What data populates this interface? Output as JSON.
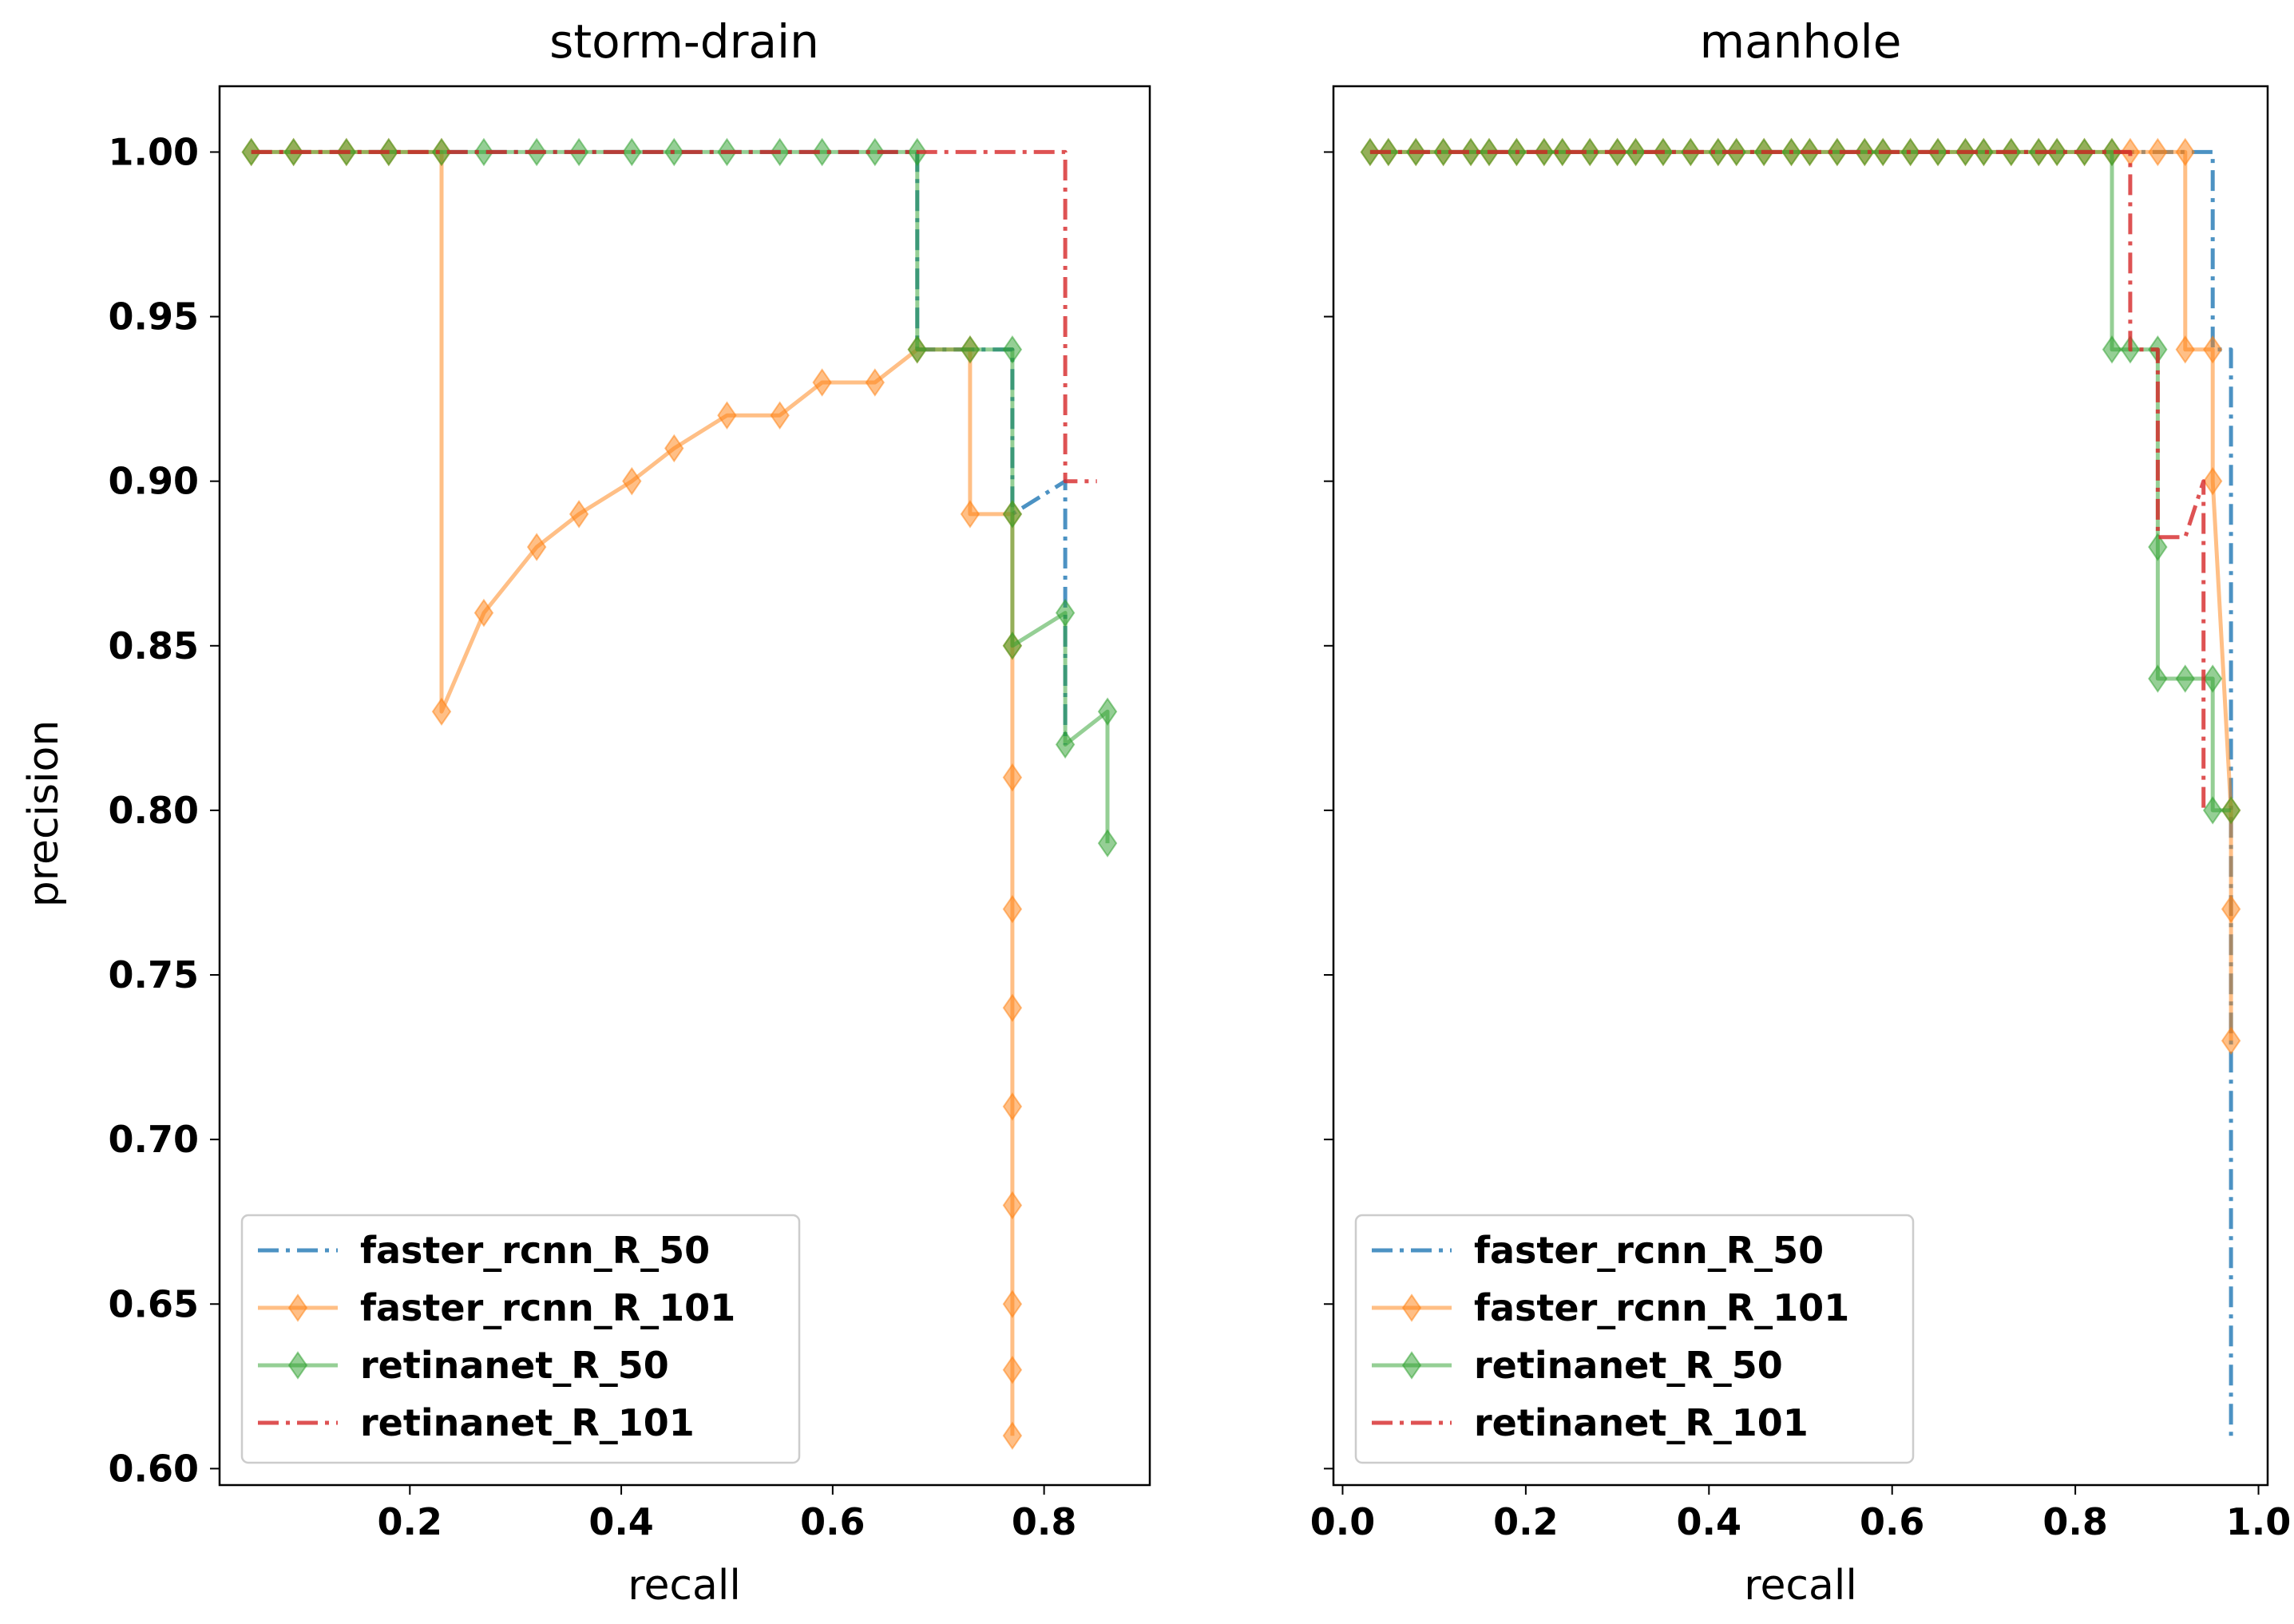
{
  "chart_data": [
    {
      "type": "line",
      "title": "storm-drain",
      "xlabel": "recall",
      "ylabel": "precision",
      "xlim": [
        0.02,
        0.9
      ],
      "ylim": [
        0.595,
        1.02
      ],
      "xticks": [
        0.2,
        0.4,
        0.6,
        0.8
      ],
      "xtick_labels": [
        "0.2",
        "0.4",
        "0.6",
        "0.8"
      ],
      "yticks": [
        0.6,
        0.65,
        0.7,
        0.75,
        0.8,
        0.85,
        0.9,
        0.95,
        1.0
      ],
      "ytick_labels": [
        "0.60",
        "0.65",
        "0.70",
        "0.75",
        "0.80",
        "0.85",
        "0.90",
        "0.95",
        "1.00"
      ],
      "legend_position": "lower-left",
      "series": [
        {
          "name": "faster_rcnn_R_50",
          "color": "#1f77b4",
          "dash": "dashdot",
          "marker": false,
          "points": [
            [
              0.05,
              1.0
            ],
            [
              0.68,
              1.0
            ],
            [
              0.68,
              0.94
            ],
            [
              0.77,
              0.94
            ],
            [
              0.77,
              0.89
            ],
            [
              0.82,
              0.9
            ],
            [
              0.82,
              0.85
            ],
            [
              0.82,
              0.82
            ]
          ]
        },
        {
          "name": "faster_rcnn_R_101",
          "color": "#ff7f0e",
          "dash": "solid",
          "marker": true,
          "points": [
            [
              0.05,
              1.0
            ],
            [
              0.09,
              1.0
            ],
            [
              0.14,
              1.0
            ],
            [
              0.18,
              1.0
            ],
            [
              0.23,
              1.0
            ],
            [
              0.23,
              0.83
            ],
            [
              0.27,
              0.86
            ],
            [
              0.32,
              0.88
            ],
            [
              0.36,
              0.89
            ],
            [
              0.41,
              0.9
            ],
            [
              0.45,
              0.91
            ],
            [
              0.5,
              0.92
            ],
            [
              0.55,
              0.92
            ],
            [
              0.59,
              0.93
            ],
            [
              0.64,
              0.93
            ],
            [
              0.68,
              0.94
            ],
            [
              0.73,
              0.94
            ],
            [
              0.73,
              0.89
            ],
            [
              0.77,
              0.89
            ],
            [
              0.77,
              0.85
            ],
            [
              0.77,
              0.81
            ],
            [
              0.77,
              0.77
            ],
            [
              0.77,
              0.74
            ],
            [
              0.77,
              0.71
            ],
            [
              0.77,
              0.68
            ],
            [
              0.77,
              0.65
            ],
            [
              0.77,
              0.63
            ],
            [
              0.77,
              0.61
            ]
          ]
        },
        {
          "name": "retinanet_R_50",
          "color": "#2ca02c",
          "dash": "solid",
          "marker": true,
          "points": [
            [
              0.05,
              1.0
            ],
            [
              0.09,
              1.0
            ],
            [
              0.14,
              1.0
            ],
            [
              0.18,
              1.0
            ],
            [
              0.23,
              1.0
            ],
            [
              0.27,
              1.0
            ],
            [
              0.32,
              1.0
            ],
            [
              0.36,
              1.0
            ],
            [
              0.41,
              1.0
            ],
            [
              0.45,
              1.0
            ],
            [
              0.5,
              1.0
            ],
            [
              0.55,
              1.0
            ],
            [
              0.59,
              1.0
            ],
            [
              0.64,
              1.0
            ],
            [
              0.68,
              1.0
            ],
            [
              0.68,
              0.94
            ],
            [
              0.73,
              0.94
            ],
            [
              0.77,
              0.94
            ],
            [
              0.77,
              0.89
            ],
            [
              0.77,
              0.85
            ],
            [
              0.82,
              0.86
            ],
            [
              0.82,
              0.82
            ],
            [
              0.86,
              0.83
            ],
            [
              0.86,
              0.79
            ]
          ]
        },
        {
          "name": "retinanet_R_101",
          "color": "#d62728",
          "dash": "dashdot",
          "marker": false,
          "points": [
            [
              0.05,
              1.0
            ],
            [
              0.82,
              1.0
            ],
            [
              0.82,
              0.9
            ],
            [
              0.85,
              0.9
            ]
          ]
        }
      ]
    },
    {
      "type": "line",
      "title": "manhole",
      "xlabel": "recall",
      "ylabel": "",
      "xlim": [
        -0.01,
        1.01
      ],
      "ylim": [
        0.595,
        1.02
      ],
      "xticks": [
        0.0,
        0.2,
        0.4,
        0.6,
        0.8,
        1.0
      ],
      "xtick_labels": [
        "0.0",
        "0.2",
        "0.4",
        "0.6",
        "0.8",
        "1.0"
      ],
      "yticks": [
        0.6,
        0.65,
        0.7,
        0.75,
        0.8,
        0.85,
        0.9,
        0.95,
        1.0
      ],
      "ytick_labels": [],
      "legend_position": "lower-left",
      "series": [
        {
          "name": "faster_rcnn_R_50",
          "color": "#1f77b4",
          "dash": "dashdot",
          "marker": false,
          "points": [
            [
              0.03,
              1.0
            ],
            [
              0.95,
              1.0
            ],
            [
              0.95,
              0.94
            ],
            [
              0.97,
              0.94
            ],
            [
              0.97,
              0.61
            ]
          ]
        },
        {
          "name": "faster_rcnn_R_101",
          "color": "#ff7f0e",
          "dash": "solid",
          "marker": true,
          "points": [
            [
              0.03,
              1.0
            ],
            [
              0.05,
              1.0
            ],
            [
              0.08,
              1.0
            ],
            [
              0.11,
              1.0
            ],
            [
              0.14,
              1.0
            ],
            [
              0.16,
              1.0
            ],
            [
              0.19,
              1.0
            ],
            [
              0.22,
              1.0
            ],
            [
              0.24,
              1.0
            ],
            [
              0.27,
              1.0
            ],
            [
              0.3,
              1.0
            ],
            [
              0.32,
              1.0
            ],
            [
              0.35,
              1.0
            ],
            [
              0.38,
              1.0
            ],
            [
              0.41,
              1.0
            ],
            [
              0.43,
              1.0
            ],
            [
              0.46,
              1.0
            ],
            [
              0.49,
              1.0
            ],
            [
              0.51,
              1.0
            ],
            [
              0.54,
              1.0
            ],
            [
              0.57,
              1.0
            ],
            [
              0.59,
              1.0
            ],
            [
              0.62,
              1.0
            ],
            [
              0.65,
              1.0
            ],
            [
              0.68,
              1.0
            ],
            [
              0.7,
              1.0
            ],
            [
              0.73,
              1.0
            ],
            [
              0.76,
              1.0
            ],
            [
              0.78,
              1.0
            ],
            [
              0.81,
              1.0
            ],
            [
              0.84,
              1.0
            ],
            [
              0.86,
              1.0
            ],
            [
              0.89,
              1.0
            ],
            [
              0.92,
              1.0
            ],
            [
              0.92,
              0.94
            ],
            [
              0.95,
              0.94
            ],
            [
              0.95,
              0.9
            ],
            [
              0.97,
              0.8
            ],
            [
              0.97,
              0.77
            ],
            [
              0.97,
              0.73
            ]
          ]
        },
        {
          "name": "retinanet_R_50",
          "color": "#2ca02c",
          "dash": "solid",
          "marker": true,
          "points": [
            [
              0.03,
              1.0
            ],
            [
              0.05,
              1.0
            ],
            [
              0.08,
              1.0
            ],
            [
              0.11,
              1.0
            ],
            [
              0.14,
              1.0
            ],
            [
              0.16,
              1.0
            ],
            [
              0.19,
              1.0
            ],
            [
              0.22,
              1.0
            ],
            [
              0.24,
              1.0
            ],
            [
              0.27,
              1.0
            ],
            [
              0.3,
              1.0
            ],
            [
              0.32,
              1.0
            ],
            [
              0.35,
              1.0
            ],
            [
              0.38,
              1.0
            ],
            [
              0.41,
              1.0
            ],
            [
              0.43,
              1.0
            ],
            [
              0.46,
              1.0
            ],
            [
              0.49,
              1.0
            ],
            [
              0.51,
              1.0
            ],
            [
              0.54,
              1.0
            ],
            [
              0.57,
              1.0
            ],
            [
              0.59,
              1.0
            ],
            [
              0.62,
              1.0
            ],
            [
              0.65,
              1.0
            ],
            [
              0.68,
              1.0
            ],
            [
              0.7,
              1.0
            ],
            [
              0.73,
              1.0
            ],
            [
              0.76,
              1.0
            ],
            [
              0.78,
              1.0
            ],
            [
              0.81,
              1.0
            ],
            [
              0.84,
              1.0
            ],
            [
              0.84,
              0.94
            ],
            [
              0.86,
              0.94
            ],
            [
              0.89,
              0.94
            ],
            [
              0.89,
              0.88
            ],
            [
              0.89,
              0.84
            ],
            [
              0.92,
              0.84
            ],
            [
              0.95,
              0.84
            ],
            [
              0.95,
              0.8
            ],
            [
              0.97,
              0.8
            ]
          ]
        },
        {
          "name": "retinanet_R_101",
          "color": "#d62728",
          "dash": "dashdot",
          "marker": false,
          "points": [
            [
              0.03,
              1.0
            ],
            [
              0.86,
              1.0
            ],
            [
              0.86,
              0.94
            ],
            [
              0.89,
              0.94
            ],
            [
              0.89,
              0.883
            ],
            [
              0.92,
              0.883
            ],
            [
              0.94,
              0.9
            ],
            [
              0.94,
              0.8
            ]
          ]
        }
      ]
    }
  ]
}
